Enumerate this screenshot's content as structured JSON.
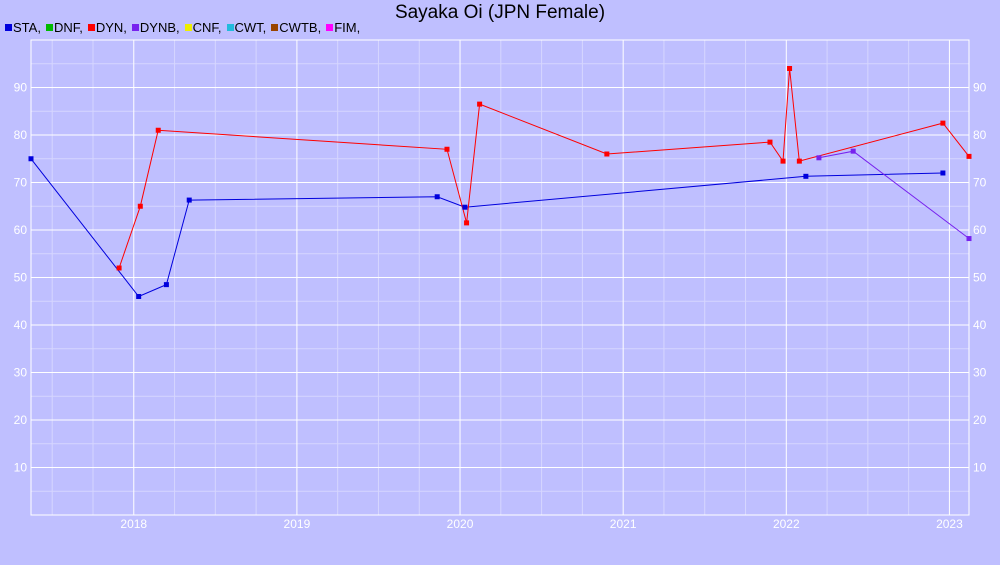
{
  "chart_data": {
    "type": "line",
    "title": "Sayaka Oi (JPN Female)",
    "legend": {
      "placement": "top-left",
      "items": [
        {
          "label": "STA,",
          "color": "#0000dd"
        },
        {
          "label": "DNF,",
          "color": "#00bb00"
        },
        {
          "label": "DYN,",
          "color": "#ff0000"
        },
        {
          "label": "DYNB,",
          "color": "#7722ee"
        },
        {
          "label": "CNF,",
          "color": "#eeee00"
        },
        {
          "label": "CWT,",
          "color": "#22bbdd"
        },
        {
          "label": "CWTB,",
          "color": "#994400"
        },
        {
          "label": "FIM,",
          "color": "#ff00ff"
        }
      ]
    },
    "xlim": [
      2017.37,
      2023.12
    ],
    "ylim": [
      0,
      100
    ],
    "x_ticks": [
      "2018",
      "2019",
      "2020",
      "2021",
      "2022",
      "2023"
    ],
    "y_ticks": [
      "10",
      "20",
      "30",
      "40",
      "50",
      "60",
      "70",
      "80",
      "90"
    ],
    "grid": true,
    "series": [
      {
        "name": "STA",
        "color": "#0000dd",
        "points": [
          [
            2017.37,
            75
          ],
          [
            2018.03,
            46
          ],
          [
            2018.2,
            48.5
          ],
          [
            2018.34,
            66.3
          ],
          [
            2019.86,
            67
          ],
          [
            2020.03,
            64.8
          ],
          [
            2022.12,
            71.3
          ],
          [
            2022.96,
            72
          ]
        ]
      },
      {
        "name": "DYN",
        "color": "#ff0000",
        "points": [
          [
            2017.91,
            52
          ],
          [
            2018.04,
            65
          ],
          [
            2018.15,
            81
          ],
          [
            2019.92,
            77
          ],
          [
            2020.04,
            61.5
          ],
          [
            2020.12,
            86.5
          ],
          [
            2020.9,
            76
          ],
          [
            2021.9,
            78.5
          ],
          [
            2021.98,
            74.5
          ],
          [
            2022.02,
            94
          ],
          [
            2022.08,
            74.5
          ],
          [
            2022.96,
            82.5
          ],
          [
            2023.12,
            75.5
          ]
        ]
      },
      {
        "name": "DYNB",
        "color": "#7722ee",
        "points": [
          [
            2022.2,
            75.2
          ],
          [
            2022.41,
            76.6
          ],
          [
            2023.12,
            58.2
          ]
        ]
      }
    ]
  }
}
